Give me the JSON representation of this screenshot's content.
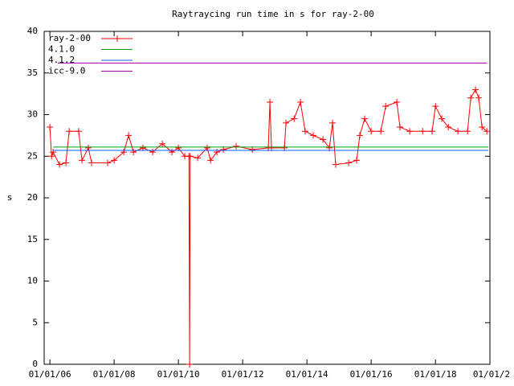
{
  "chart_data": {
    "type": "line",
    "title": "Raytraycing run time in s for ray-2-00",
    "y_label": "s",
    "xlim": [
      "2005-10-28",
      "2019-09-12"
    ],
    "xticks": [
      {
        "value": "2006-01-01",
        "label": "01/01/06"
      },
      {
        "value": "2008-01-01",
        "label": "01/01/08"
      },
      {
        "value": "2010-01-01",
        "label": "01/01/10"
      },
      {
        "value": "2012-01-01",
        "label": "01/01/12"
      },
      {
        "value": "2014-01-01",
        "label": "01/01/14"
      },
      {
        "value": "2016-01-01",
        "label": "01/01/16"
      },
      {
        "value": "2018-01-01",
        "label": "01/01/18"
      },
      {
        "value": "2020-01-01",
        "label": "01/01/2"
      }
    ],
    "ylim": [
      0,
      40
    ],
    "yticks": [
      0,
      5,
      10,
      15,
      20,
      25,
      30,
      35,
      40
    ],
    "legend": "top-left",
    "series": [
      {
        "name": "ray-2-00",
        "color": "#ff0000",
        "markers": true,
        "x": [
          "2006-01-01",
          "2006-01-20",
          "2006-02-06",
          "2006-04-20",
          "2006-07-02",
          "2006-08-08",
          "2006-11-24",
          "2007-01-01",
          "2007-03-14",
          "2007-04-20",
          "2007-10-19",
          "2008-01-01",
          "2008-04-20",
          "2008-06-14",
          "2008-08-08",
          "2008-11-24",
          "2009-03-14",
          "2009-07-02",
          "2009-10-19",
          "2010-01-01",
          "2010-03-14",
          "2010-05-01",
          "2010-05-08",
          "2010-05-15",
          "2010-08-08",
          "2010-11-24",
          "2011-01-01",
          "2011-03-14",
          "2011-05-27",
          "2011-10-19",
          "2012-04-20",
          "2012-10-19",
          "2012-11-06",
          "2012-11-24",
          "2013-04-20",
          "2013-05-08",
          "2013-08-08",
          "2013-10-19",
          "2013-12-12",
          "2014-03-14",
          "2014-07-02",
          "2014-09-13",
          "2014-10-19",
          "2014-11-24",
          "2015-04-20",
          "2015-07-20",
          "2015-08-25",
          "2015-10-19",
          "2016-01-01",
          "2016-04-20",
          "2016-06-14",
          "2016-10-19",
          "2016-11-24",
          "2017-03-14",
          "2017-08-08",
          "2017-11-24",
          "2018-01-01",
          "2018-03-14",
          "2018-05-27",
          "2018-09-13",
          "2019-01-01",
          "2019-02-06",
          "2019-04-01",
          "2019-05-08",
          "2019-06-14",
          "2019-08-08"
        ],
        "values": [
          28.5,
          25,
          25.5,
          24,
          24.2,
          28,
          28,
          24.5,
          26,
          24.2,
          24.2,
          24.5,
          25.5,
          27.5,
          25.5,
          26,
          25.5,
          26.5,
          25.5,
          26,
          25,
          25,
          0,
          25,
          24.8,
          26,
          24.5,
          25.5,
          25.8,
          26.2,
          25.8,
          26,
          31.5,
          26,
          26,
          29,
          29.5,
          31.5,
          28,
          27.5,
          27,
          26,
          29,
          24,
          24.2,
          24.5,
          27.5,
          29.5,
          28,
          28,
          31,
          31.5,
          28.5,
          28,
          28,
          28,
          31,
          29.5,
          28.5,
          28,
          28,
          32,
          33,
          32,
          28.5,
          28
        ]
      },
      {
        "name": "4.1.0",
        "color": "#00a000",
        "x": [
          "2006-02-06",
          "2019-08-25"
        ],
        "values": [
          26.1,
          26.1
        ]
      },
      {
        "name": "4.1.2",
        "color": "#0060ff",
        "x": [
          "2006-02-06",
          "2019-08-25"
        ],
        "values": [
          25.7,
          25.7
        ]
      },
      {
        "name": "icc-9.0",
        "color": "#a000a0",
        "x": [
          "2006-04-01",
          "2019-08-08"
        ],
        "values": [
          36.2,
          36.2
        ]
      }
    ]
  }
}
